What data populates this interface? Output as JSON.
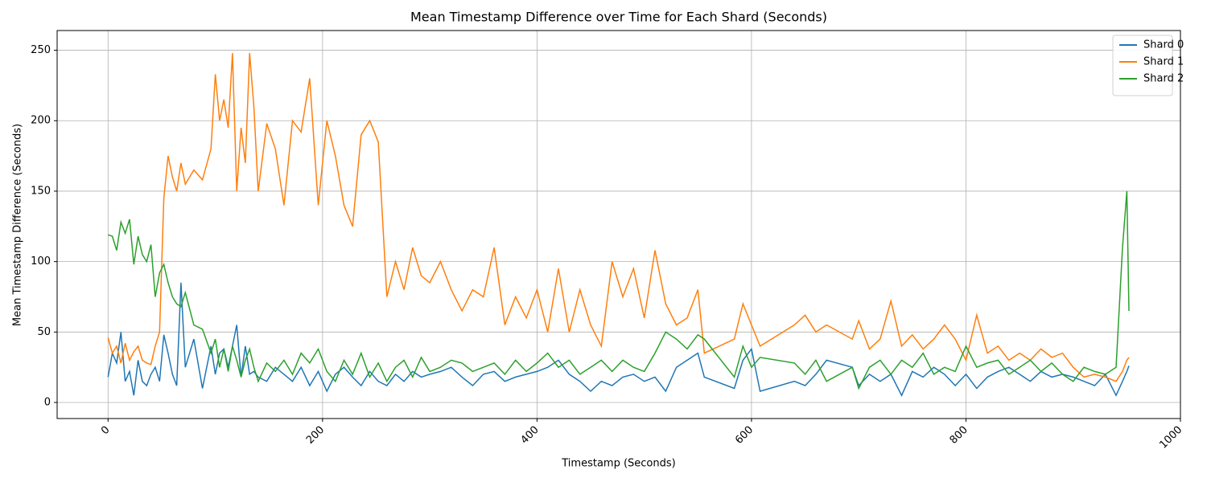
{
  "chart_data": {
    "type": "line",
    "title": "Mean Timestamp Difference over Time for Each Shard (Seconds)",
    "x_label": "Timestamp (Seconds)",
    "y_label": "Mean Timestamp Difference (Seconds)",
    "x": [
      0,
      4,
      8,
      12,
      16,
      20,
      24,
      28,
      32,
      36,
      40,
      44,
      48,
      52,
      56,
      60,
      64,
      68,
      72,
      80,
      88,
      96,
      100,
      104,
      108,
      112,
      116,
      120,
      124,
      128,
      132,
      136,
      140,
      148,
      156,
      164,
      172,
      180,
      188,
      196,
      204,
      212,
      220,
      228,
      236,
      244,
      252,
      260,
      268,
      276,
      284,
      292,
      300,
      310,
      320,
      330,
      340,
      350,
      360,
      370,
      380,
      390,
      400,
      410,
      420,
      430,
      440,
      450,
      460,
      470,
      480,
      490,
      500,
      510,
      520,
      530,
      540,
      550,
      556,
      584,
      592,
      600,
      608,
      640,
      650,
      660,
      670,
      694,
      700,
      710,
      720,
      730,
      740,
      750,
      760,
      770,
      780,
      790,
      800,
      810,
      820,
      830,
      840,
      850,
      860,
      870,
      880,
      890,
      900,
      910,
      920,
      930,
      940,
      946,
      950,
      952
    ],
    "series": [
      {
        "name": "Shard 0",
        "color": "#1f77b4",
        "values": [
          18,
          35,
          28,
          50,
          15,
          22,
          5,
          30,
          15,
          12,
          20,
          25,
          15,
          48,
          35,
          20,
          12,
          85,
          25,
          45,
          10,
          40,
          20,
          35,
          38,
          25,
          40,
          55,
          18,
          40,
          20,
          22,
          18,
          15,
          25,
          20,
          15,
          25,
          12,
          22,
          8,
          20,
          25,
          18,
          12,
          22,
          15,
          12,
          20,
          15,
          22,
          18,
          20,
          22,
          25,
          18,
          12,
          20,
          22,
          15,
          18,
          20,
          22,
          25,
          30,
          20,
          15,
          8,
          15,
          12,
          18,
          20,
          15,
          18,
          8,
          25,
          30,
          35,
          18,
          10,
          30,
          38,
          8,
          15,
          12,
          20,
          30,
          25,
          12,
          20,
          15,
          20,
          5,
          22,
          18,
          25,
          20,
          12,
          20,
          10,
          18,
          22,
          25,
          20,
          15,
          22,
          18,
          20,
          18,
          15,
          12,
          20,
          5,
          15,
          22,
          26
        ]
      },
      {
        "name": "Shard 1",
        "color": "#ff7f0e",
        "values": [
          46,
          35,
          40,
          28,
          42,
          30,
          36,
          40,
          30,
          28,
          27,
          40,
          50,
          145,
          175,
          160,
          150,
          170,
          155,
          165,
          158,
          180,
          233,
          200,
          215,
          195,
          248,
          150,
          195,
          170,
          248,
          210,
          150,
          198,
          180,
          140,
          200,
          192,
          230,
          140,
          200,
          175,
          140,
          125,
          190,
          200,
          185,
          75,
          100,
          80,
          110,
          90,
          85,
          100,
          80,
          65,
          80,
          75,
          110,
          55,
          75,
          60,
          80,
          50,
          95,
          50,
          80,
          55,
          40,
          100,
          75,
          95,
          60,
          108,
          70,
          55,
          60,
          80,
          35,
          45,
          70,
          55,
          40,
          55,
          62,
          50,
          55,
          45,
          58,
          38,
          45,
          72,
          40,
          48,
          38,
          45,
          55,
          45,
          30,
          62,
          35,
          40,
          30,
          35,
          30,
          38,
          32,
          35,
          25,
          18,
          20,
          18,
          15,
          22,
          30,
          32
        ]
      },
      {
        "name": "Shard 2",
        "color": "#2ca02c",
        "values": [
          119,
          118,
          108,
          128,
          120,
          130,
          98,
          118,
          105,
          100,
          112,
          75,
          92,
          98,
          85,
          75,
          70,
          68,
          78,
          55,
          52,
          35,
          45,
          25,
          38,
          22,
          40,
          30,
          18,
          30,
          38,
          25,
          15,
          28,
          22,
          30,
          20,
          35,
          28,
          38,
          22,
          15,
          30,
          20,
          35,
          18,
          28,
          15,
          25,
          30,
          18,
          32,
          22,
          25,
          30,
          28,
          22,
          25,
          28,
          20,
          30,
          22,
          28,
          35,
          25,
          30,
          20,
          25,
          30,
          22,
          30,
          25,
          22,
          35,
          50,
          45,
          38,
          48,
          45,
          18,
          40,
          25,
          32,
          28,
          20,
          30,
          15,
          25,
          10,
          25,
          30,
          20,
          30,
          25,
          35,
          20,
          25,
          22,
          40,
          25,
          28,
          30,
          20,
          25,
          30,
          22,
          28,
          20,
          15,
          25,
          22,
          20,
          25,
          110,
          150,
          65
        ]
      }
    ],
    "xlim": [
      -47.5,
      1000
    ],
    "ylim": [
      -11.4,
      264
    ],
    "xticks": [
      0,
      200,
      400,
      600,
      800,
      1000
    ],
    "yticks": [
      0,
      50,
      100,
      150,
      200,
      250
    ],
    "grid": true,
    "legend": "upper right"
  }
}
